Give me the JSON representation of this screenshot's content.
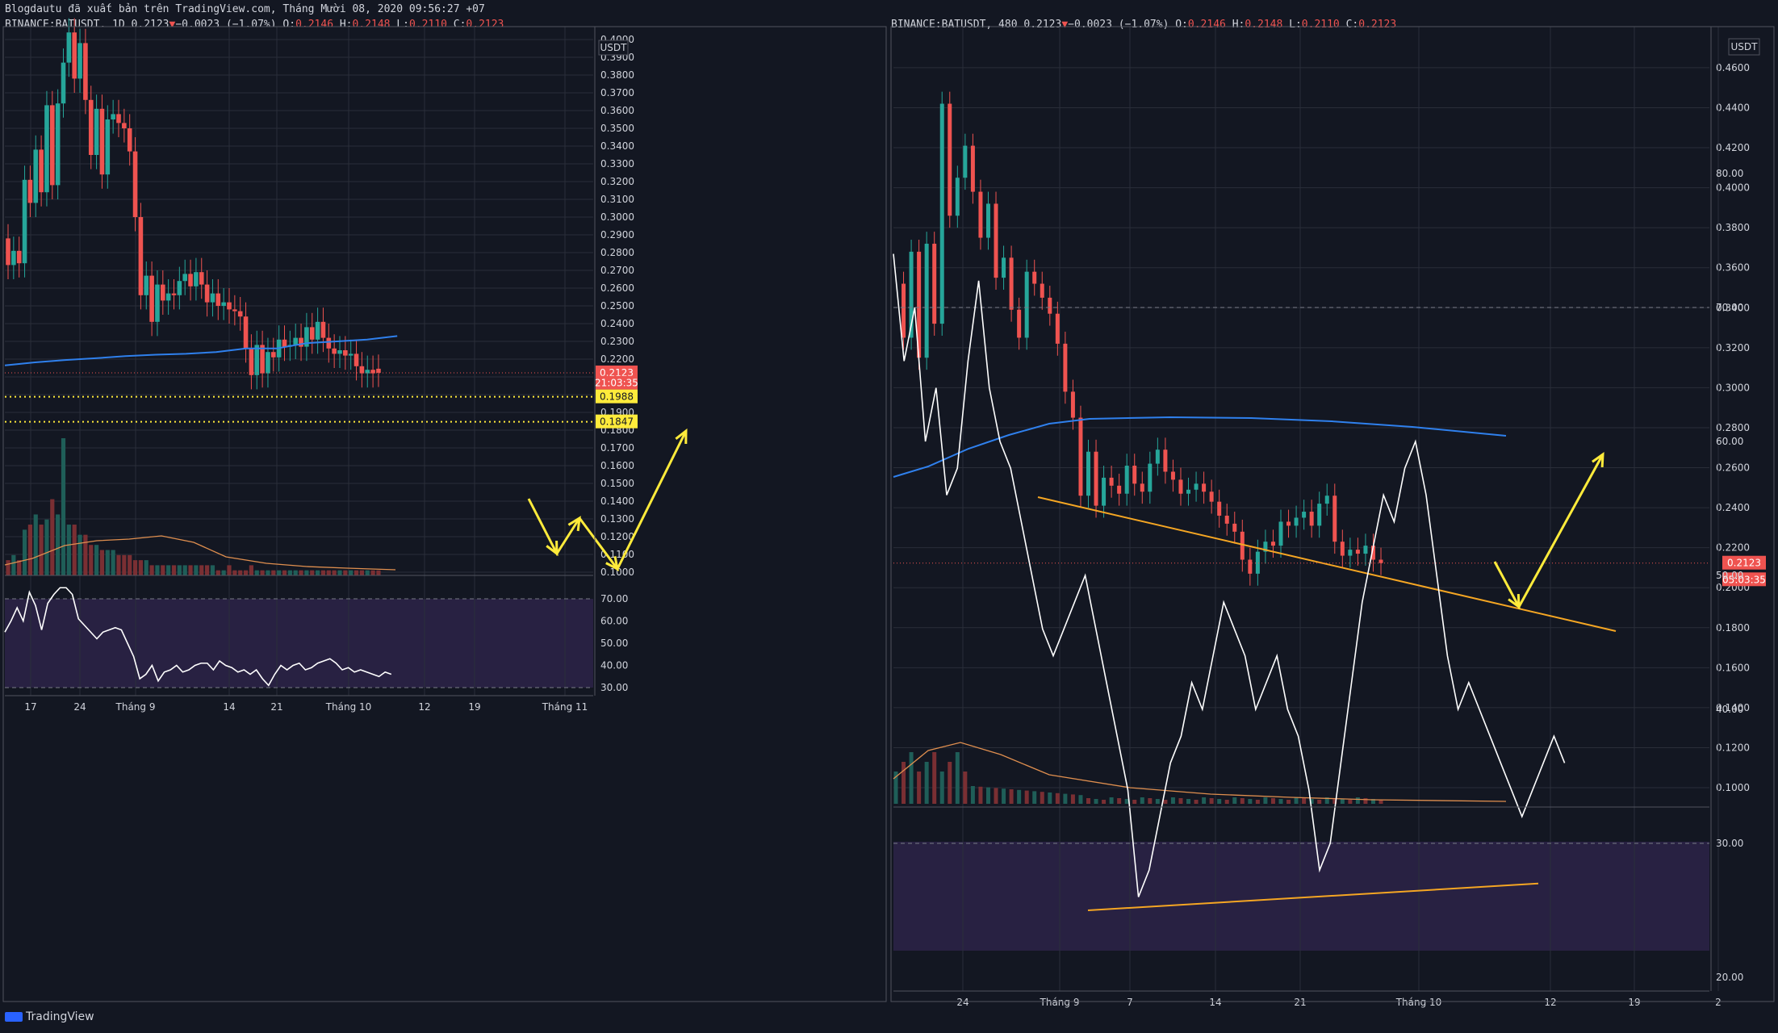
{
  "header": {
    "export_line": "Blogdautu đã xuất bản trên TradingView.com, Tháng Mười 08, 2020 09:56:27 +07",
    "left": {
      "symbol": "BINANCE:BATUSDT, 1D",
      "last": "0.2123",
      "change": "−0.0023 (−1.07%)",
      "ohlc": [
        [
          "O:",
          "0.2146"
        ],
        [
          "H:",
          "0.2148"
        ],
        [
          "L:",
          "0.2110"
        ],
        [
          "C:",
          "0.2123"
        ]
      ]
    },
    "right": {
      "symbol": "BINANCE:BATUSDT, 480",
      "last": "0.2123",
      "change": "−0.0023 (−1.07%)",
      "ohlc": [
        [
          "O:",
          "0.2146"
        ],
        [
          "H:",
          "0.2148"
        ],
        [
          "L:",
          "0.2110"
        ],
        [
          "C:",
          "0.2123"
        ]
      ]
    }
  },
  "footer": {
    "brand": "TradingView"
  },
  "colors": {
    "background": "#131722",
    "up": "#26a69a",
    "down": "#ef5350",
    "ma": "#2f80ed",
    "vol_ma": "#e08f4f",
    "rsi": "#ffffff",
    "rsi_band": "#3b2a5c",
    "drawing": "#ffeb3b",
    "trendline": "#f5a623",
    "grid": "#2a2e39"
  },
  "chart_data": [
    {
      "type": "candlestick",
      "symbol": "BINANCE:BATUSDT",
      "interval": "1D",
      "currency": "USDT",
      "ylim": [
        0.1,
        0.4
      ],
      "price_ticks": [
        "0.1000",
        "0.1100",
        "0.1200",
        "0.1300",
        "0.1400",
        "0.1500",
        "0.1600",
        "0.1700",
        "0.1800",
        "0.1900",
        "0.2000",
        "0.2100",
        "0.2200",
        "0.2300",
        "0.2400",
        "0.2500",
        "0.2600",
        "0.2700",
        "0.2800",
        "0.2900",
        "0.3000",
        "0.3100",
        "0.3200",
        "0.3300",
        "0.3400",
        "0.3500",
        "0.3600",
        "0.3700",
        "0.3800",
        "0.3900",
        "0.4000"
      ],
      "x_ticks": [
        "17",
        "24",
        "Tháng 9",
        "14",
        "21",
        "Tháng 10",
        "12",
        "19",
        "Tháng 11"
      ],
      "price_badges": [
        {
          "label": "0.2123",
          "value": 0.2123,
          "color": "#ef5350"
        },
        {
          "label": "21:03:35",
          "value": 0.2065,
          "color": "#ef5350"
        },
        {
          "label": "0.1988",
          "value": 0.1988,
          "color": "#ffeb3b"
        },
        {
          "label": "0.1847",
          "value": 0.1847,
          "color": "#ffeb3b"
        }
      ],
      "horizontal_levels": [
        0.1988,
        0.1847
      ],
      "candles": [
        [
          0.288,
          0.273
        ],
        [
          0.273,
          0.281
        ],
        [
          0.281,
          0.274
        ],
        [
          0.274,
          0.321
        ],
        [
          0.321,
          0.308
        ],
        [
          0.308,
          0.338
        ],
        [
          0.338,
          0.314
        ],
        [
          0.314,
          0.363
        ],
        [
          0.363,
          0.318
        ],
        [
          0.318,
          0.364
        ],
        [
          0.364,
          0.387
        ],
        [
          0.387,
          0.404
        ],
        [
          0.404,
          0.378
        ],
        [
          0.378,
          0.398
        ],
        [
          0.398,
          0.366
        ],
        [
          0.366,
          0.335
        ],
        [
          0.335,
          0.361
        ],
        [
          0.361,
          0.324
        ],
        [
          0.324,
          0.355
        ],
        [
          0.355,
          0.358
        ],
        [
          0.358,
          0.353
        ],
        [
          0.353,
          0.35
        ],
        [
          0.35,
          0.337
        ],
        [
          0.337,
          0.3
        ],
        [
          0.3,
          0.256
        ],
        [
          0.256,
          0.267
        ],
        [
          0.267,
          0.241
        ],
        [
          0.241,
          0.262
        ],
        [
          0.262,
          0.253
        ],
        [
          0.253,
          0.257
        ],
        [
          0.257,
          0.256
        ],
        [
          0.256,
          0.264
        ],
        [
          0.264,
          0.268
        ],
        [
          0.268,
          0.261
        ],
        [
          0.261,
          0.269
        ],
        [
          0.269,
          0.262
        ],
        [
          0.262,
          0.252
        ],
        [
          0.252,
          0.257
        ],
        [
          0.257,
          0.25
        ],
        [
          0.25,
          0.252
        ],
        [
          0.252,
          0.248
        ],
        [
          0.248,
          0.247
        ],
        [
          0.247,
          0.244
        ],
        [
          0.244,
          0.226
        ],
        [
          0.226,
          0.211
        ],
        [
          0.211,
          0.228
        ],
        [
          0.228,
          0.212
        ],
        [
          0.212,
          0.224
        ],
        [
          0.224,
          0.221
        ],
        [
          0.221,
          0.231
        ],
        [
          0.231,
          0.227
        ],
        [
          0.227,
          0.228
        ],
        [
          0.228,
          0.232
        ],
        [
          0.232,
          0.227
        ],
        [
          0.227,
          0.238
        ],
        [
          0.238,
          0.231
        ],
        [
          0.231,
          0.241
        ],
        [
          0.241,
          0.232
        ],
        [
          0.232,
          0.226
        ],
        [
          0.226,
          0.223
        ],
        [
          0.223,
          0.225
        ],
        [
          0.225,
          0.222
        ],
        [
          0.222,
          0.223
        ],
        [
          0.223,
          0.216
        ],
        [
          0.216,
          0.212
        ],
        [
          0.212,
          0.214
        ],
        [
          0.214,
          0.212
        ],
        [
          0.2146,
          0.2123
        ]
      ],
      "ma": [
        0.2165,
        0.2182,
        0.2195,
        0.2205,
        0.2217,
        0.2225,
        0.223,
        0.224,
        0.226,
        0.226,
        0.229,
        0.23,
        0.231,
        0.233
      ],
      "rsi": {
        "band": [
          30,
          70
        ],
        "ticks": [
          "30.00",
          "40.00",
          "50.00",
          "60.00",
          "70.00"
        ],
        "values": [
          55,
          60,
          66,
          60,
          73,
          67,
          56,
          68,
          72,
          75,
          75,
          72,
          61,
          58,
          55,
          52,
          55,
          56,
          57,
          56,
          50,
          44,
          34,
          36,
          40,
          33,
          37,
          38,
          40,
          37,
          38,
          40,
          41,
          41,
          38,
          42,
          40,
          39,
          37,
          38,
          36,
          38,
          34,
          31,
          36,
          40,
          38,
          40,
          41,
          38,
          39,
          41,
          42,
          43,
          41,
          38,
          39,
          37,
          38,
          37,
          36,
          35,
          37,
          36
        ]
      },
      "volume": [
        3,
        4,
        3,
        9,
        10,
        12,
        10,
        11,
        15,
        12,
        27,
        10,
        10,
        8,
        8,
        6,
        6,
        5,
        5,
        5,
        4,
        4,
        4,
        3,
        3,
        3,
        2,
        2,
        2,
        2,
        2,
        2,
        2,
        2,
        2,
        2,
        2,
        2,
        1,
        1,
        2,
        1,
        1,
        1,
        2,
        1,
        1,
        1,
        1,
        1,
        1,
        1,
        1,
        1,
        1,
        1,
        1,
        1,
        1,
        1,
        1,
        1,
        1,
        1,
        1,
        1,
        1,
        1
      ],
      "annotations": [
        {
          "type": "path",
          "points": [
            [
              0.2265,
              "d64"
            ],
            [
              0.201,
              "d66"
            ],
            [
              0.214,
              "d68"
            ]
          ]
        },
        {
          "type": "path",
          "points": [
            [
              0.214,
              "d68"
            ],
            [
              0.196,
              "d72"
            ],
            [
              0.252,
              "d80"
            ]
          ]
        }
      ]
    },
    {
      "type": "candlestick",
      "symbol": "BINANCE:BATUSDT",
      "interval": "480",
      "currency": "USDT",
      "ylim": [
        0.09,
        0.46
      ],
      "price_ticks": [
        "0.1000",
        "0.1200",
        "0.1400",
        "0.1600",
        "0.1800",
        "0.2000",
        "0.2200",
        "0.2400",
        "0.2600",
        "0.2800",
        "0.3000",
        "0.3200",
        "0.3400",
        "0.3600",
        "0.3800",
        "0.4000",
        "0.4200",
        "0.4400",
        "0.4600"
      ],
      "x_ticks": [
        "24",
        "Tháng 9",
        "7",
        "14",
        "21",
        "Tháng 10",
        "12",
        "19",
        "2"
      ],
      "price_badges": [
        {
          "label": "0.2123",
          "value": 0.2123,
          "color": "#ef5350"
        },
        {
          "label": "05:03:35",
          "value": 0.204,
          "color": "#ef5350"
        }
      ],
      "rsi": {
        "band": [
          30,
          70
        ],
        "ticks": [
          "20.00",
          "30.00",
          "40.00",
          "50.00",
          "60.00",
          "70.00",
          "80.00"
        ]
      },
      "annotations": [
        {
          "type": "trendline",
          "from": [
            0.2355,
            "t0"
          ],
          "to": [
            0.179,
            "t1"
          ]
        },
        {
          "type": "trendline_rsi",
          "from": [
            25,
            "t0"
          ],
          "to": [
            27,
            "t1"
          ]
        }
      ]
    }
  ]
}
